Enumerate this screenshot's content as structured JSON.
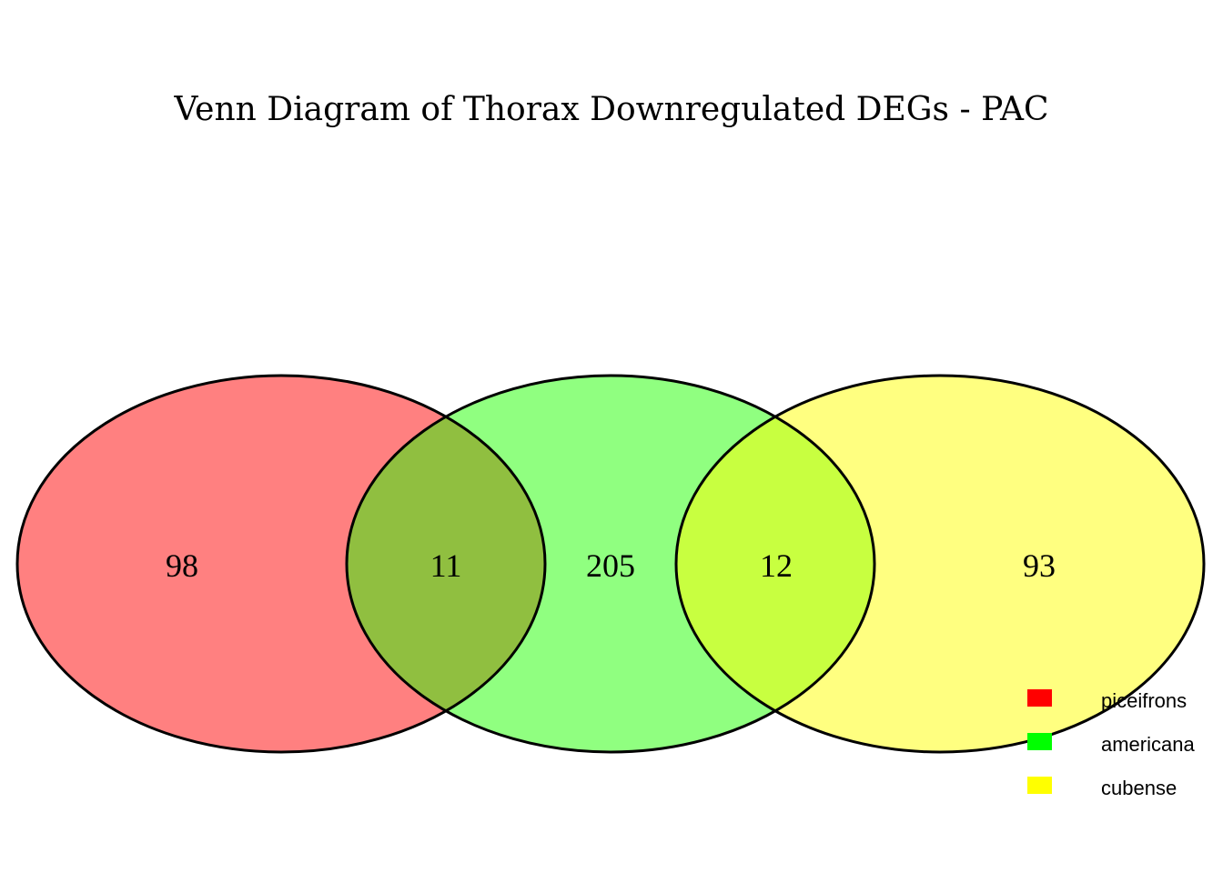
{
  "title": "Venn Diagram of Thorax Downregulated DEGs - PAC",
  "sets": [
    {
      "name": "piceifrons",
      "color": "#FF0000",
      "fill": "#FF8080"
    },
    {
      "name": "americana",
      "color": "#00FF00",
      "fill": "#90FF80"
    },
    {
      "name": "cubense",
      "color": "#FFFF00",
      "fill": "#FFFF80"
    }
  ],
  "regions": {
    "piceifrons_only": "98",
    "piceifrons_americana": "11",
    "americana_only": "205",
    "americana_cubense": "12",
    "cubense_only": "93"
  },
  "intersection_colors": {
    "piceifrons_americana": "#90BF40",
    "americana_cubense": "#C8FF40"
  }
}
